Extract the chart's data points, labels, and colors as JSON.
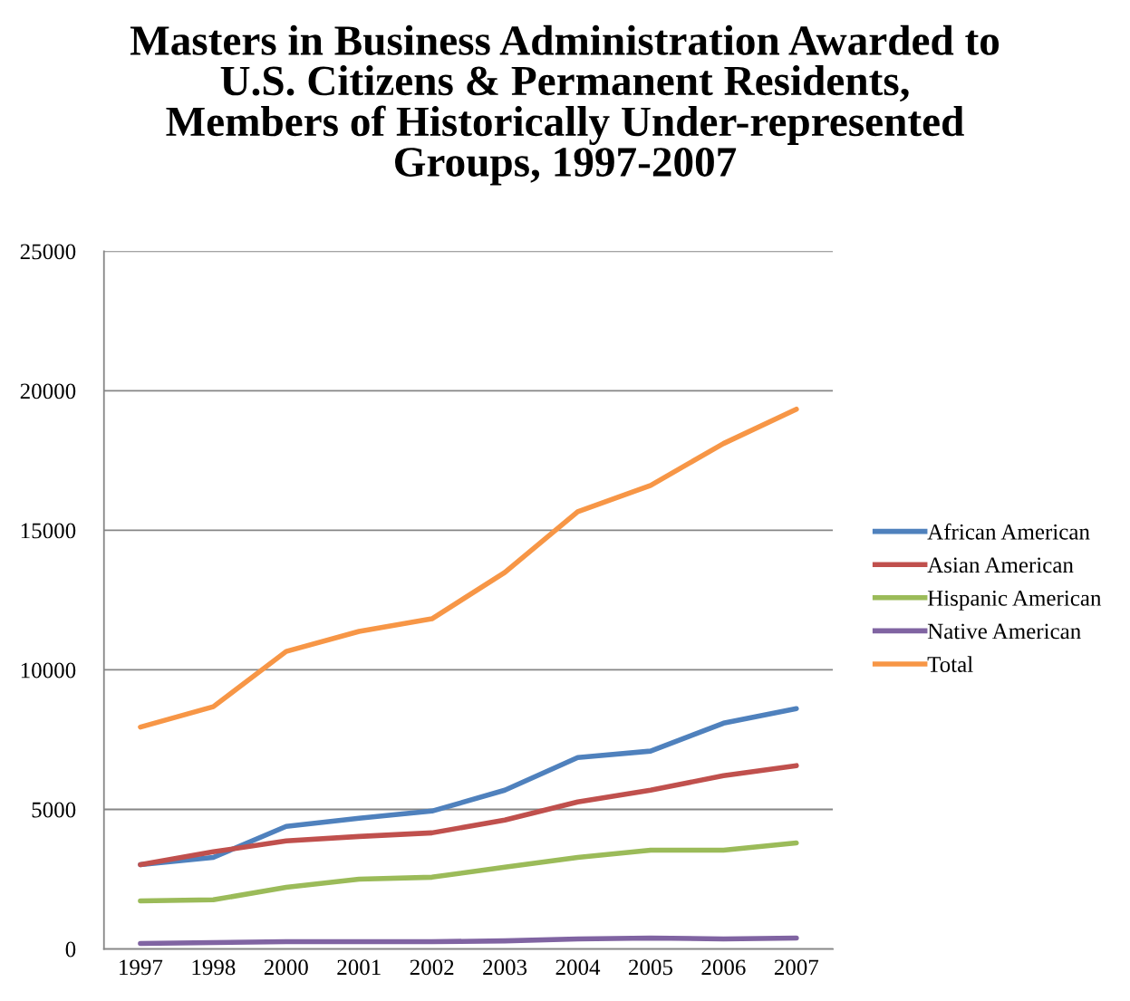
{
  "chart_data": {
    "type": "line",
    "title": "Masters in Business Administration Awarded to\nU.S. Citizens & Permanent Residents,\nMembers of Historically Under-represented\nGroups, 1997-2007",
    "categories": [
      "1997",
      "1998",
      "2000",
      "2001",
      "2002",
      "2003",
      "2004",
      "2005",
      "2006",
      "2007"
    ],
    "series": [
      {
        "name": "African American",
        "color": "#4f81bd",
        "values": [
          3020,
          3280,
          4390,
          4680,
          4940,
          5690,
          6860,
          7090,
          8090,
          8610
        ]
      },
      {
        "name": "Asian American",
        "color": "#c0504d",
        "values": [
          3020,
          3480,
          3870,
          4030,
          4160,
          4620,
          5270,
          5690,
          6210,
          6570
        ]
      },
      {
        "name": "Hispanic American",
        "color": "#9bbb59",
        "values": [
          1720,
          1760,
          2210,
          2500,
          2570,
          2930,
          3280,
          3540,
          3540,
          3800
        ]
      },
      {
        "name": "Native American",
        "color": "#8064a2",
        "values": [
          195,
          230,
          260,
          260,
          260,
          290,
          360,
          390,
          360,
          390
        ]
      },
      {
        "name": "Total",
        "color": "#f79646",
        "values": [
          7950,
          8680,
          10660,
          11380,
          11830,
          13490,
          15670,
          16610,
          18110,
          19340
        ]
      }
    ],
    "ylim": [
      0,
      25000
    ],
    "yticks": [
      0,
      5000,
      10000,
      15000,
      20000,
      25000
    ],
    "grid": "y",
    "legend": "right",
    "marker": "none",
    "line_style": "solid"
  }
}
